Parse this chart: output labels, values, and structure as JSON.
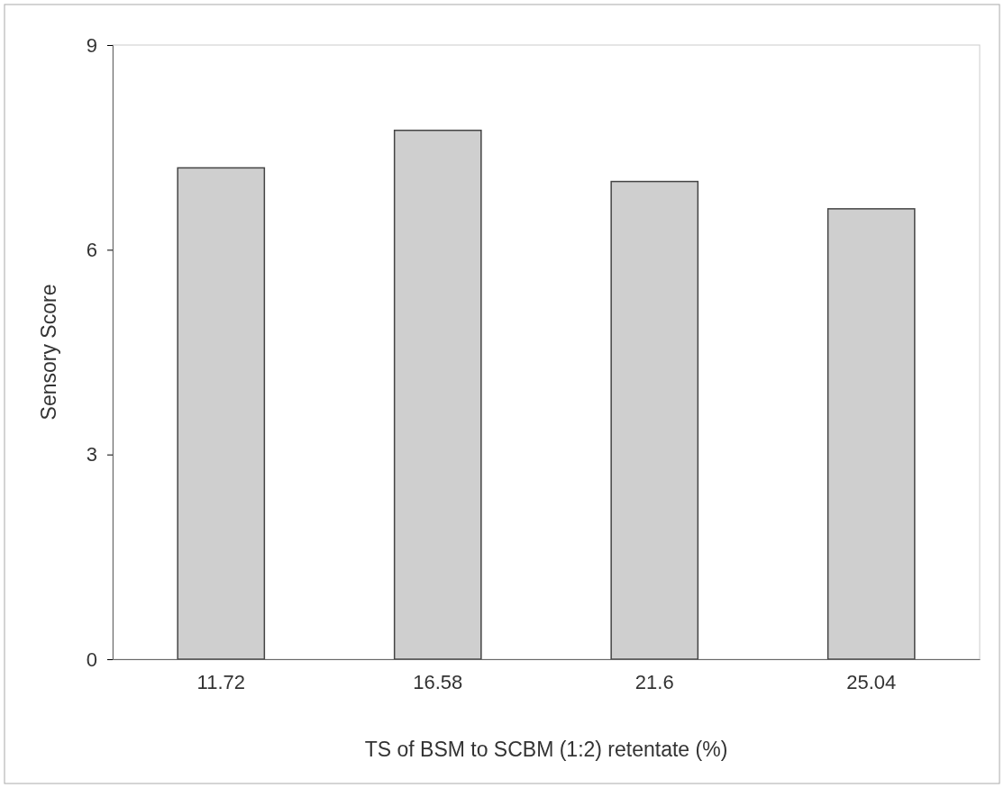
{
  "chart_data": {
    "type": "bar",
    "xlabel": "TS of BSM to SCBM (1:2) retentate (%)",
    "ylabel": "Sensory Score",
    "categories": [
      "11.72",
      "16.58",
      "21.6",
      "25.04"
    ],
    "values": [
      7.2,
      7.75,
      7.0,
      6.6
    ],
    "color": "#cfcfcf",
    "ylim": [
      0,
      9
    ],
    "yticks": [
      0,
      3,
      6,
      9
    ],
    "grid": false
  }
}
